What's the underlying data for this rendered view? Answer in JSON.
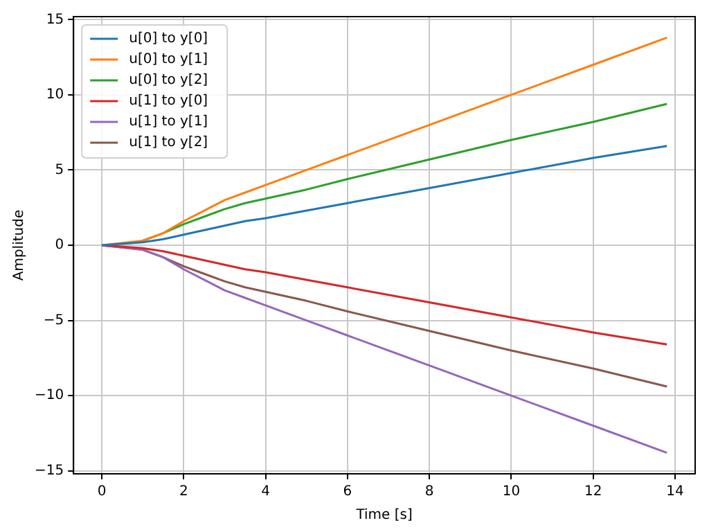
{
  "chart_data": {
    "type": "line",
    "xlabel": "Time [s]",
    "ylabel": "Amplitude",
    "x": [
      0,
      1,
      1.5,
      2,
      2.5,
      3,
      3.5,
      4,
      5,
      6,
      8,
      10,
      12,
      13.8
    ],
    "series": [
      {
        "name": "u[0] to y[0]",
        "color": "#1f77b4",
        "values": [
          0,
          0.2,
          0.4,
          0.7,
          1.0,
          1.3,
          1.6,
          1.8,
          2.3,
          2.8,
          3.8,
          4.8,
          5.8,
          6.6
        ]
      },
      {
        "name": "u[0] to y[1]",
        "color": "#ff7f0e",
        "values": [
          0,
          0.3,
          0.8,
          1.6,
          2.3,
          3.0,
          3.5,
          4.0,
          5.0,
          6.0,
          8.0,
          10.0,
          12.0,
          13.8
        ]
      },
      {
        "name": "u[0] to y[2]",
        "color": "#2ca02c",
        "values": [
          null,
          0.3,
          0.8,
          1.4,
          1.9,
          2.4,
          2.8,
          3.1,
          3.7,
          4.4,
          5.7,
          7.0,
          8.2,
          9.4
        ]
      },
      {
        "name": "u[1] to y[0]",
        "color": "#d62728",
        "values": [
          0,
          -0.2,
          -0.4,
          -0.7,
          -1.0,
          -1.3,
          -1.6,
          -1.8,
          -2.3,
          -2.8,
          -3.8,
          -4.8,
          -5.8,
          -6.6
        ]
      },
      {
        "name": "u[1] to y[1]",
        "color": "#9467bd",
        "values": [
          0,
          -0.3,
          -0.8,
          -1.6,
          -2.3,
          -3.0,
          -3.5,
          -4.0,
          -5.0,
          -6.0,
          -8.0,
          -10.0,
          -12.0,
          -13.8
        ]
      },
      {
        "name": "u[1] to y[2]",
        "color": "#8c564b",
        "values": [
          0,
          -0.3,
          -0.8,
          -1.4,
          -1.9,
          -2.4,
          -2.8,
          -3.1,
          -3.7,
          -4.4,
          -5.7,
          -7.0,
          -8.2,
          -9.4
        ]
      }
    ],
    "xlim": [
      -0.69,
      14.49
    ],
    "xticks": [
      0,
      2,
      4,
      6,
      8,
      10,
      12,
      14
    ],
    "ylim": [
      -15.2,
      15.2
    ],
    "yticks": [
      {
        "value": -15,
        "label": "−15"
      },
      {
        "value": -10,
        "label": "−10"
      },
      {
        "value": -5,
        "label": "−5"
      },
      0,
      5,
      10,
      15
    ],
    "grid": true,
    "legend": "top left",
    "marker": "none",
    "line_style": "solid"
  }
}
